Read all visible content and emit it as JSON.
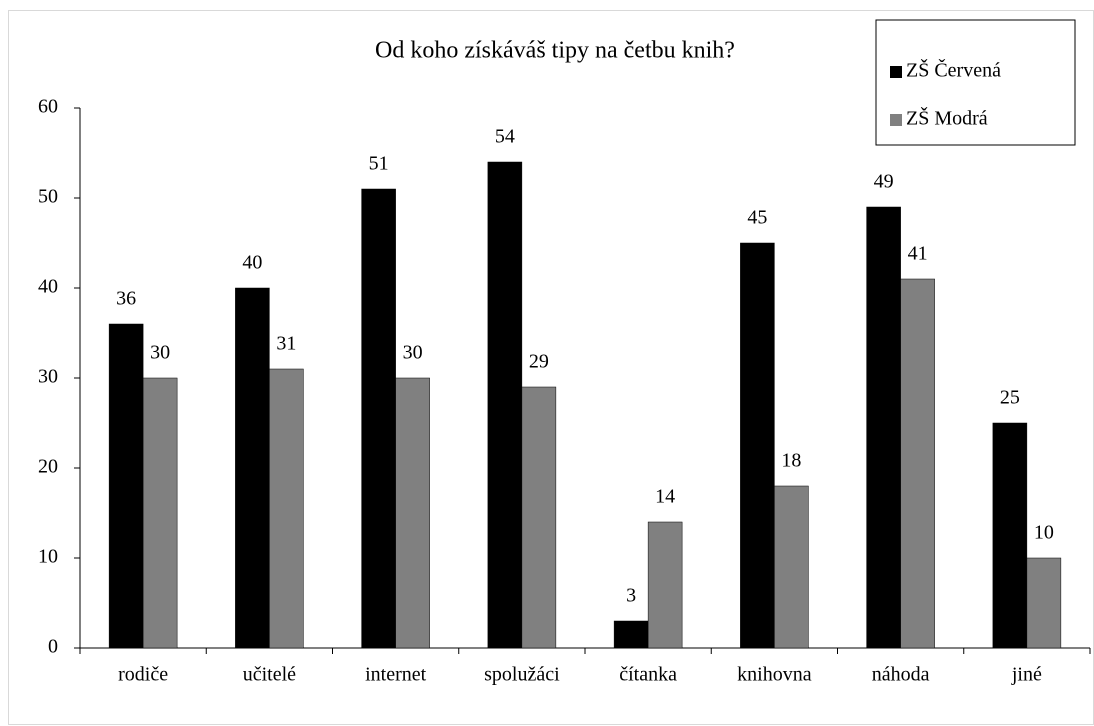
{
  "chart_data": {
    "type": "bar",
    "title": "Od koho získáváš  tipy na četbu knih?",
    "categories": [
      "rodiče",
      "učitelé",
      "internet",
      "spolužáci",
      "čítanka",
      "knihovna",
      "náhoda",
      "jiné"
    ],
    "series": [
      {
        "name": "ZŠ Červená",
        "color": "#000000",
        "values": [
          36,
          40,
          51,
          54,
          3,
          45,
          49,
          25
        ]
      },
      {
        "name": "ZŠ Modrá",
        "color": "#808080",
        "values": [
          30,
          31,
          30,
          29,
          14,
          18,
          41,
          10
        ]
      }
    ],
    "ylim": [
      0,
      60
    ],
    "yticks": [
      0,
      10,
      20,
      30,
      40,
      50,
      60
    ],
    "grid": false,
    "legend": "top-right"
  }
}
